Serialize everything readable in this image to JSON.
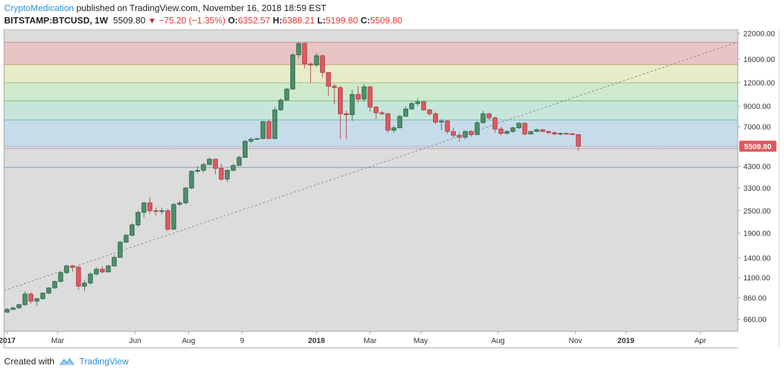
{
  "header": {
    "author": "CryptoMedication",
    "published_text": "published on TradingView.com, November 16, 2018 18:59 EST",
    "symbol": "BITSTAMP:BTCUSD, 1W",
    "last": "5509.80",
    "change": "−75.20 (−1.35%)",
    "o_label": "O:",
    "o_value": "6352.57",
    "h_label": "H:",
    "h_value": "6388.21",
    "l_label": "L:",
    "l_value": "5199.80",
    "c_label": "C:",
    "c_value": "5509.80"
  },
  "footer": {
    "created_with": "Created with",
    "brand": "TradingView"
  },
  "colors": {
    "up": "#4c8f6a",
    "down": "#e0595f",
    "last_price_badge": "#e0595f",
    "fib_bands": [
      "#e8c5c5",
      "#e8ecc9",
      "#cfe9cc",
      "#c6e6dc",
      "#c6dcea",
      "#dcdcdc"
    ]
  },
  "chart_data": {
    "type": "candlestick",
    "y_scale": "log",
    "y_ticks": [
      660,
      860,
      1100,
      1400,
      1900,
      2500,
      3300,
      4300,
      5509.8,
      7000,
      9000,
      12000,
      16000,
      22000
    ],
    "y_tick_labels": [
      "660.00",
      "860.00",
      "1100.00",
      "1400.00",
      "1900.00",
      "2500.00",
      "3300.00",
      "4300.00",
      "5509.80",
      "7000.00",
      "9000.00",
      "12000.00",
      "16000.00",
      "22000.00"
    ],
    "ylim": [
      570,
      23000
    ],
    "last_price": 5509.8,
    "last_price_label": "5509.80",
    "x_labels": [
      {
        "text": "2017",
        "week": 0,
        "bold": true
      },
      {
        "text": "Mar",
        "week": 8.5,
        "bold": false
      },
      {
        "text": "Jun",
        "week": 21.5,
        "bold": false
      },
      {
        "text": "Aug",
        "week": 30.5,
        "bold": false
      },
      {
        "text": "9",
        "week": 39.5,
        "bold": false
      },
      {
        "text": "2018",
        "week": 52,
        "bold": true
      },
      {
        "text": "Mar",
        "week": 61,
        "bold": false
      },
      {
        "text": "May",
        "week": 69.5,
        "bold": false
      },
      {
        "text": "Aug",
        "week": 82.5,
        "bold": false
      },
      {
        "text": "Nov",
        "week": 95.5,
        "bold": false
      },
      {
        "text": "2019",
        "week": 104,
        "bold": true
      },
      {
        "text": "Apr",
        "week": 116.5,
        "bold": false
      }
    ],
    "x_range_weeks": [
      -0.5,
      122.8
    ],
    "fib_levels": [
      19700,
      15000,
      12000,
      9600,
      7600,
      5350,
      4250
    ],
    "trendline": {
      "start": {
        "week": -0.5,
        "price": 940
      },
      "end": {
        "week": 122.5,
        "price": 19600
      }
    },
    "candles": [
      [
        720,
        760,
        715,
        745
      ],
      [
        745,
        770,
        740,
        760
      ],
      [
        760,
        800,
        750,
        790
      ],
      [
        790,
        930,
        780,
        900
      ],
      [
        900,
        920,
        800,
        825
      ],
      [
        825,
        860,
        780,
        850
      ],
      [
        850,
        920,
        840,
        910
      ],
      [
        910,
        980,
        900,
        970
      ],
      [
        970,
        1060,
        960,
        1050
      ],
      [
        1050,
        1190,
        1040,
        1170
      ],
      [
        1170,
        1290,
        1150,
        1270
      ],
      [
        1270,
        1290,
        1180,
        1250
      ],
      [
        1250,
        1270,
        950,
        990
      ],
      [
        990,
        1070,
        930,
        1030
      ],
      [
        1030,
        1180,
        1010,
        1150
      ],
      [
        1150,
        1250,
        1130,
        1220
      ],
      [
        1220,
        1270,
        1160,
        1180
      ],
      [
        1180,
        1290,
        1170,
        1270
      ],
      [
        1270,
        1450,
        1260,
        1410
      ],
      [
        1410,
        1720,
        1400,
        1700
      ],
      [
        1700,
        1880,
        1680,
        1850
      ],
      [
        1850,
        2150,
        1820,
        2100
      ],
      [
        2100,
        2500,
        2050,
        2450
      ],
      [
        2450,
        2800,
        2300,
        2750
      ],
      [
        2750,
        2950,
        2400,
        2500
      ],
      [
        2500,
        2600,
        2350,
        2480
      ],
      [
        2480,
        2600,
        2400,
        2500
      ],
      [
        2500,
        2560,
        1950,
        1990
      ],
      [
        1990,
        2750,
        1980,
        2700
      ],
      [
        2700,
        2830,
        2650,
        2750
      ],
      [
        2750,
        3350,
        2700,
        3300
      ],
      [
        3300,
        4100,
        3250,
        4050
      ],
      [
        4050,
        4300,
        3950,
        4100
      ],
      [
        4100,
        4500,
        4000,
        4400
      ],
      [
        4400,
        4800,
        4380,
        4700
      ],
      [
        4700,
        4730,
        3900,
        4200
      ],
      [
        4200,
        4450,
        3600,
        3680
      ],
      [
        3680,
        4150,
        3550,
        4100
      ],
      [
        4100,
        4450,
        4050,
        4350
      ],
      [
        4350,
        4900,
        4330,
        4800
      ],
      [
        4800,
        5950,
        4780,
        5850
      ],
      [
        5850,
        6150,
        5750,
        6000
      ],
      [
        6000,
        6100,
        5950,
        6050
      ],
      [
        6050,
        7500,
        6000,
        7450
      ],
      [
        7450,
        7600,
        6000,
        6050
      ],
      [
        6050,
        8900,
        6000,
        8600
      ],
      [
        8600,
        9900,
        8500,
        9700
      ],
      [
        9700,
        11300,
        9600,
        11100
      ],
      [
        11100,
        17200,
        11000,
        16900
      ],
      [
        16900,
        19700,
        16200,
        19400
      ],
      [
        19400,
        19700,
        14300,
        15100
      ],
      [
        15100,
        15400,
        12000,
        14900
      ],
      [
        14900,
        17300,
        14500,
        16700
      ],
      [
        16700,
        16900,
        12800,
        13600
      ],
      [
        13600,
        13700,
        10200,
        11500
      ],
      [
        11500,
        11800,
        9200,
        11300
      ],
      [
        11300,
        11500,
        6000,
        8200
      ],
      [
        8200,
        8500,
        6000,
        8100
      ],
      [
        8100,
        11000,
        7500,
        10400
      ],
      [
        10400,
        11500,
        9400,
        9800
      ],
      [
        9800,
        11800,
        9500,
        11400
      ],
      [
        11400,
        11600,
        8400,
        8900
      ],
      [
        8900,
        9000,
        7700,
        8300
      ],
      [
        8300,
        8500,
        8100,
        8200
      ],
      [
        8200,
        8300,
        6500,
        6700
      ],
      [
        6700,
        7100,
        6500,
        6900
      ],
      [
        6900,
        8100,
        6850,
        7950
      ],
      [
        7950,
        9000,
        7900,
        8700
      ],
      [
        8700,
        9500,
        8600,
        9300
      ],
      [
        9300,
        9900,
        9000,
        9500
      ],
      [
        9500,
        9600,
        8500,
        8600
      ],
      [
        8600,
        8700,
        8000,
        8200
      ],
      [
        8200,
        8400,
        7200,
        7400
      ],
      [
        7400,
        7700,
        6700,
        7500
      ],
      [
        7500,
        7600,
        6400,
        6600
      ],
      [
        6600,
        6900,
        6100,
        6300
      ],
      [
        6300,
        6500,
        5800,
        6150
      ],
      [
        6150,
        6700,
        6000,
        6600
      ],
      [
        6600,
        6700,
        6200,
        6350
      ],
      [
        6350,
        7500,
        6300,
        7350
      ],
      [
        7350,
        8500,
        7250,
        8200
      ],
      [
        8200,
        8300,
        7600,
        7800
      ],
      [
        7800,
        7900,
        6500,
        6800
      ],
      [
        6800,
        7000,
        6300,
        6450
      ],
      [
        6450,
        6700,
        6350,
        6600
      ],
      [
        6600,
        7000,
        6500,
        6900
      ],
      [
        6900,
        7400,
        6800,
        7300
      ],
      [
        7300,
        7400,
        6300,
        6400
      ],
      [
        6400,
        6650,
        6350,
        6600
      ],
      [
        6600,
        6850,
        6550,
        6750
      ],
      [
        6750,
        6800,
        6550,
        6600
      ],
      [
        6600,
        6650,
        6400,
        6500
      ],
      [
        6500,
        6600,
        6300,
        6400
      ],
      [
        6400,
        6500,
        6300,
        6450
      ],
      [
        6450,
        6520,
        6380,
        6420
      ],
      [
        6420,
        6500,
        6350,
        6400
      ],
      [
        6352.57,
        6388.21,
        5199.8,
        5509.8
      ]
    ]
  }
}
